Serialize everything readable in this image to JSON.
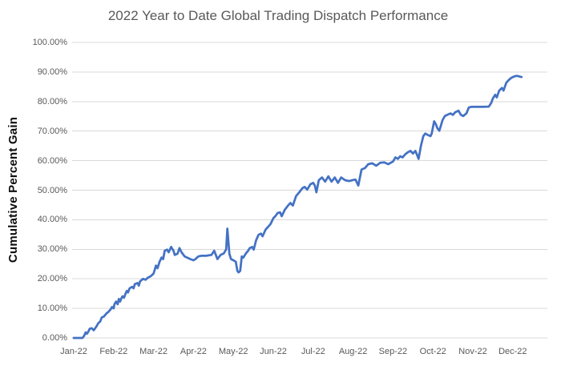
{
  "chart_data": {
    "type": "line",
    "title": "2022 Year to Date Global Trading Dispatch Performance",
    "xlabel": "",
    "ylabel": "Cumulative Percent Gain",
    "x_tick_labels": [
      "Jan-22",
      "Feb-22",
      "Mar-22",
      "Apr-22",
      "May-22",
      "Jun-22",
      "Jul-22",
      "Aug-22",
      "Sep-22",
      "Oct-22",
      "Nov-22",
      "Dec-22"
    ],
    "y_tick_labels": [
      "0.00%",
      "10.00%",
      "20.00%",
      "30.00%",
      "40.00%",
      "50.00%",
      "60.00%",
      "70.00%",
      "80.00%",
      "90.00%",
      "100.00%"
    ],
    "ylim": [
      0,
      100
    ],
    "xlim_months": [
      0,
      11.9
    ],
    "grid": "horizontal-only",
    "legend": "none",
    "line_color": "#4472C4",
    "gridline_color": "#d9d9d9",
    "tick_color": "#595959",
    "title_color": "#595959",
    "series": [
      {
        "name": "Cumulative Percent Gain",
        "units": "percent",
        "points": [
          [
            0.0,
            0.0
          ],
          [
            0.12,
            0.0
          ],
          [
            0.22,
            0.0
          ],
          [
            0.26,
            0.7
          ],
          [
            0.3,
            1.9
          ],
          [
            0.33,
            1.4
          ],
          [
            0.36,
            2.0
          ],
          [
            0.4,
            3.1
          ],
          [
            0.45,
            3.3
          ],
          [
            0.5,
            2.6
          ],
          [
            0.56,
            3.7
          ],
          [
            0.62,
            5.1
          ],
          [
            0.66,
            5.5
          ],
          [
            0.7,
            6.9
          ],
          [
            0.76,
            7.3
          ],
          [
            0.82,
            8.3
          ],
          [
            0.86,
            8.7
          ],
          [
            0.92,
            9.6
          ],
          [
            0.96,
            10.5
          ],
          [
            1.0,
            10.0
          ],
          [
            1.02,
            11.4
          ],
          [
            1.06,
            12.3
          ],
          [
            1.1,
            11.4
          ],
          [
            1.13,
            13.2
          ],
          [
            1.16,
            12.3
          ],
          [
            1.2,
            13.6
          ],
          [
            1.22,
            14.1
          ],
          [
            1.26,
            13.6
          ],
          [
            1.3,
            15.0
          ],
          [
            1.33,
            15.9
          ],
          [
            1.36,
            15.4
          ],
          [
            1.4,
            16.8
          ],
          [
            1.46,
            17.3
          ],
          [
            1.5,
            16.8
          ],
          [
            1.53,
            18.2
          ],
          [
            1.6,
            18.6
          ],
          [
            1.63,
            17.7
          ],
          [
            1.66,
            19.1
          ],
          [
            1.73,
            20.0
          ],
          [
            1.8,
            19.7
          ],
          [
            1.86,
            20.4
          ],
          [
            1.93,
            20.9
          ],
          [
            2.0,
            21.8
          ],
          [
            2.03,
            23.1
          ],
          [
            2.06,
            24.5
          ],
          [
            2.1,
            23.6
          ],
          [
            2.15,
            25.8
          ],
          [
            2.2,
            27.2
          ],
          [
            2.24,
            26.7
          ],
          [
            2.28,
            29.5
          ],
          [
            2.34,
            29.9
          ],
          [
            2.38,
            29.0
          ],
          [
            2.44,
            30.8
          ],
          [
            2.5,
            29.5
          ],
          [
            2.53,
            28.1
          ],
          [
            2.6,
            28.5
          ],
          [
            2.65,
            30.4
          ],
          [
            2.7,
            29.0
          ],
          [
            2.78,
            27.6
          ],
          [
            2.84,
            27.2
          ],
          [
            2.92,
            26.7
          ],
          [
            3.0,
            26.3
          ],
          [
            3.05,
            26.7
          ],
          [
            3.12,
            27.6
          ],
          [
            3.2,
            27.8
          ],
          [
            3.32,
            27.8
          ],
          [
            3.45,
            28.1
          ],
          [
            3.52,
            29.5
          ],
          [
            3.6,
            26.7
          ],
          [
            3.68,
            28.1
          ],
          [
            3.76,
            28.6
          ],
          [
            3.82,
            30.0
          ],
          [
            3.85,
            37.0
          ],
          [
            3.9,
            28.5
          ],
          [
            3.94,
            26.7
          ],
          [
            4.0,
            26.3
          ],
          [
            4.06,
            25.8
          ],
          [
            4.1,
            22.7
          ],
          [
            4.13,
            22.2
          ],
          [
            4.17,
            22.7
          ],
          [
            4.21,
            27.6
          ],
          [
            4.25,
            27.2
          ],
          [
            4.31,
            28.5
          ],
          [
            4.37,
            29.5
          ],
          [
            4.41,
            30.4
          ],
          [
            4.47,
            30.8
          ],
          [
            4.51,
            29.9
          ],
          [
            4.57,
            33.1
          ],
          [
            4.63,
            34.9
          ],
          [
            4.69,
            35.3
          ],
          [
            4.73,
            34.4
          ],
          [
            4.81,
            36.7
          ],
          [
            4.87,
            37.6
          ],
          [
            4.93,
            38.5
          ],
          [
            5.0,
            40.5
          ],
          [
            5.05,
            41.2
          ],
          [
            5.11,
            42.3
          ],
          [
            5.17,
            42.5
          ],
          [
            5.21,
            41.2
          ],
          [
            5.29,
            43.4
          ],
          [
            5.37,
            44.8
          ],
          [
            5.43,
            45.7
          ],
          [
            5.49,
            44.8
          ],
          [
            5.57,
            48.0
          ],
          [
            5.65,
            49.3
          ],
          [
            5.73,
            50.7
          ],
          [
            5.79,
            51.1
          ],
          [
            5.85,
            50.2
          ],
          [
            5.93,
            52.0
          ],
          [
            6.0,
            52.5
          ],
          [
            6.04,
            51.6
          ],
          [
            6.08,
            49.3
          ],
          [
            6.14,
            53.4
          ],
          [
            6.22,
            54.3
          ],
          [
            6.3,
            52.9
          ],
          [
            6.38,
            54.7
          ],
          [
            6.46,
            52.9
          ],
          [
            6.54,
            54.3
          ],
          [
            6.62,
            52.5
          ],
          [
            6.7,
            54.3
          ],
          [
            6.8,
            53.4
          ],
          [
            6.9,
            53.1
          ],
          [
            6.98,
            53.4
          ],
          [
            7.06,
            53.6
          ],
          [
            7.13,
            51.6
          ],
          [
            7.21,
            57.0
          ],
          [
            7.3,
            57.5
          ],
          [
            7.38,
            58.8
          ],
          [
            7.48,
            59.1
          ],
          [
            7.58,
            58.3
          ],
          [
            7.68,
            59.3
          ],
          [
            7.78,
            59.4
          ],
          [
            7.88,
            58.8
          ],
          [
            8.0,
            59.7
          ],
          [
            8.06,
            61.1
          ],
          [
            8.12,
            60.6
          ],
          [
            8.18,
            61.5
          ],
          [
            8.24,
            61.1
          ],
          [
            8.31,
            62.2
          ],
          [
            8.38,
            62.9
          ],
          [
            8.44,
            63.3
          ],
          [
            8.5,
            62.4
          ],
          [
            8.56,
            63.3
          ],
          [
            8.6,
            62.0
          ],
          [
            8.64,
            60.6
          ],
          [
            8.7,
            65.1
          ],
          [
            8.76,
            68.3
          ],
          [
            8.81,
            69.2
          ],
          [
            8.87,
            68.7
          ],
          [
            8.94,
            68.3
          ],
          [
            8.97,
            69.2
          ],
          [
            9.03,
            73.3
          ],
          [
            9.07,
            72.4
          ],
          [
            9.11,
            71.0
          ],
          [
            9.16,
            70.1
          ],
          [
            9.24,
            73.7
          ],
          [
            9.3,
            75.1
          ],
          [
            9.36,
            75.5
          ],
          [
            9.44,
            76.0
          ],
          [
            9.5,
            75.5
          ],
          [
            9.56,
            76.4
          ],
          [
            9.64,
            76.9
          ],
          [
            9.7,
            75.5
          ],
          [
            9.76,
            75.1
          ],
          [
            9.84,
            76.0
          ],
          [
            9.9,
            78.0
          ],
          [
            9.97,
            78.2
          ],
          [
            10.1,
            78.2
          ],
          [
            10.25,
            78.2
          ],
          [
            10.4,
            78.3
          ],
          [
            10.46,
            79.5
          ],
          [
            10.5,
            81.0
          ],
          [
            10.56,
            82.3
          ],
          [
            10.6,
            81.4
          ],
          [
            10.66,
            83.7
          ],
          [
            10.73,
            84.6
          ],
          [
            10.77,
            83.7
          ],
          [
            10.84,
            86.4
          ],
          [
            10.9,
            87.3
          ],
          [
            10.96,
            88.0
          ],
          [
            11.04,
            88.5
          ],
          [
            11.1,
            88.7
          ],
          [
            11.16,
            88.5
          ],
          [
            11.22,
            88.3
          ]
        ]
      }
    ]
  }
}
